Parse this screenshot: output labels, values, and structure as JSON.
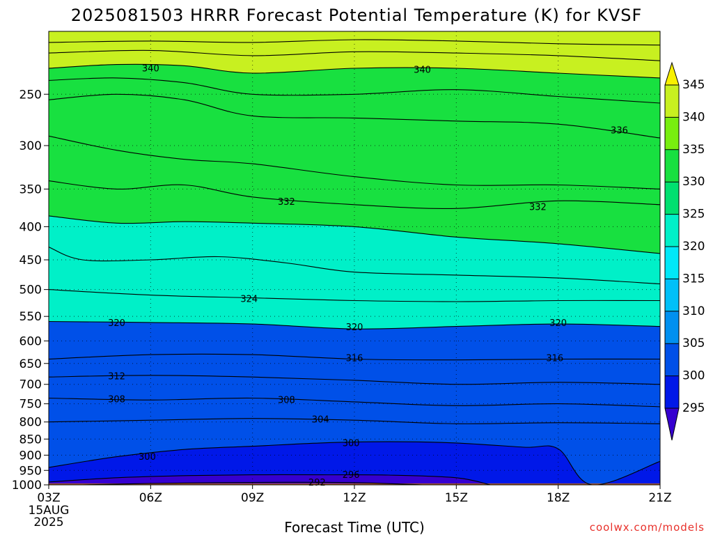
{
  "chart_data": {
    "type": "heatmap",
    "title": "2025081503 HRRR Forecast Potential Temperature (K) for KVSF",
    "xlabel": "Forecast Time (UTC)",
    "x_date_lines": [
      "15AUG",
      "2025"
    ],
    "x_ticks": [
      "03Z",
      "06Z",
      "09Z",
      "12Z",
      "15Z",
      "18Z",
      "21Z"
    ],
    "x_hours": [
      3,
      6,
      9,
      12,
      15,
      18,
      21
    ],
    "y_ticks": [
      250,
      300,
      350,
      400,
      450,
      500,
      550,
      600,
      650,
      700,
      750,
      800,
      850,
      900,
      950,
      1000
    ],
    "y_range_hpa": [
      1000,
      200
    ],
    "y_scale": "log-pressure",
    "grid": "dotted",
    "colorbar": {
      "levels": [
        295,
        300,
        305,
        310,
        315,
        320,
        325,
        330,
        335,
        340,
        345
      ],
      "labels": [
        "295",
        "300",
        "305",
        "310",
        "315",
        "320",
        "325",
        "330",
        "335",
        "340",
        "345"
      ],
      "colors": [
        "#3600d0",
        "#0018e8",
        "#0050e8",
        "#0090f0",
        "#00c0f8",
        "#00e8f8",
        "#00f0c8",
        "#00e070",
        "#18e040",
        "#78ee10",
        "#c8f020",
        "#f8f000"
      ],
      "extend": "both"
    },
    "contour_lines": [
      {
        "value": 292,
        "label": "292",
        "hours": [
          4,
          6,
          8,
          10,
          12,
          14
        ],
        "pressure": [
          1000,
          995,
          992,
          991,
          992,
          1000
        ]
      },
      {
        "value": 296,
        "label": "296",
        "hours": [
          3,
          5,
          7,
          9,
          11,
          13,
          15,
          16
        ],
        "pressure": [
          990,
          975,
          968,
          965,
          965,
          966,
          975,
          1000
        ]
      },
      {
        "value": 300,
        "label": "300",
        "hours": [
          3,
          5,
          7,
          9,
          11,
          13,
          15,
          17,
          18,
          19,
          21
        ],
        "pressure": [
          940,
          905,
          882,
          872,
          862,
          858,
          862,
          875,
          880,
          1000,
          920
        ]
      },
      {
        "value": 304,
        "label": "304",
        "hours": [
          3,
          6,
          9,
          12,
          15,
          18,
          21
        ],
        "pressure": [
          800,
          795,
          790,
          795,
          805,
          802,
          805
        ]
      },
      {
        "value": 308,
        "label": "308",
        "hours": [
          3,
          6,
          9,
          12,
          15,
          18,
          21
        ],
        "pressure": [
          735,
          740,
          735,
          745,
          755,
          750,
          758
        ]
      },
      {
        "value": 312,
        "label": "312",
        "hours": [
          3,
          6,
          9,
          12,
          15,
          18,
          21
        ],
        "pressure": [
          682,
          678,
          682,
          690,
          700,
          695,
          700
        ]
      },
      {
        "value": 316,
        "label": "316",
        "hours": [
          3,
          6,
          9,
          12,
          15,
          18,
          21
        ],
        "pressure": [
          640,
          630,
          630,
          640,
          642,
          640,
          640
        ]
      },
      {
        "value": 320,
        "label": "320",
        "hours": [
          3,
          6,
          9,
          12,
          15,
          18,
          21
        ],
        "pressure": [
          560,
          562,
          565,
          575,
          570,
          565,
          570
        ]
      },
      {
        "value": 324,
        "label": "324",
        "hours": [
          3,
          6,
          9,
          12,
          15,
          18,
          21
        ],
        "pressure": [
          500,
          510,
          515,
          520,
          522,
          520,
          520
        ]
      },
      {
        "value": 328,
        "label": "",
        "hours": [
          3,
          4,
          6,
          8,
          10,
          12,
          15,
          18,
          21
        ],
        "pressure": [
          430,
          450,
          450,
          445,
          455,
          470,
          475,
          480,
          490
        ]
      },
      {
        "value": 330,
        "label": "",
        "hours": [
          3,
          5,
          7,
          9,
          12,
          15,
          18,
          21
        ],
        "pressure": [
          385,
          395,
          393,
          395,
          400,
          415,
          425,
          440
        ]
      },
      {
        "value": 332,
        "label": "332",
        "hours": [
          3,
          5,
          7,
          9,
          12,
          15,
          18,
          21
        ],
        "pressure": [
          340,
          350,
          345,
          360,
          370,
          375,
          365,
          370
        ]
      },
      {
        "value": 334,
        "label": "",
        "hours": [
          3,
          5,
          7,
          9,
          12,
          15,
          18,
          21
        ],
        "pressure": [
          290,
          305,
          315,
          320,
          335,
          345,
          345,
          350
        ]
      },
      {
        "value": 336,
        "label": "336",
        "hours": [
          3,
          5,
          7,
          9,
          12,
          15,
          18,
          21
        ],
        "pressure": [
          255,
          250,
          255,
          270,
          272,
          275,
          278,
          292
        ]
      },
      {
        "value": 338,
        "label": "",
        "hours": [
          3,
          5,
          7,
          9,
          12,
          15,
          18,
          21
        ],
        "pressure": [
          238,
          236,
          240,
          250,
          250,
          246,
          252,
          258
        ]
      },
      {
        "value": 340,
        "label": "340",
        "hours": [
          3,
          5,
          7,
          9,
          12,
          15,
          18,
          21
        ],
        "pressure": [
          228,
          225,
          226,
          232,
          228,
          228,
          232,
          236
        ]
      },
      {
        "value": 342,
        "label": "",
        "hours": [
          3,
          6,
          9,
          12,
          15,
          18,
          21
        ],
        "pressure": [
          216,
          214,
          218,
          215,
          216,
          218,
          222
        ]
      },
      {
        "value": 344,
        "label": "",
        "hours": [
          3,
          6,
          9,
          12,
          15,
          18,
          21
        ],
        "pressure": [
          208,
          207,
          208,
          206,
          207,
          209,
          210
        ]
      }
    ],
    "labeled_contours": [
      {
        "label": "340",
        "hour": 6,
        "pressure": 228
      },
      {
        "label": "340",
        "hour": 14,
        "pressure": 229
      },
      {
        "label": "336",
        "hour": 19.8,
        "pressure": 284
      },
      {
        "label": "332",
        "hour": 10,
        "pressure": 366
      },
      {
        "label": "332",
        "hour": 17.4,
        "pressure": 373
      },
      {
        "label": "324",
        "hour": 8.9,
        "pressure": 517
      },
      {
        "label": "320",
        "hour": 5,
        "pressure": 563
      },
      {
        "label": "320",
        "hour": 12,
        "pressure": 571
      },
      {
        "label": "320",
        "hour": 18,
        "pressure": 563
      },
      {
        "label": "316",
        "hour": 12,
        "pressure": 638
      },
      {
        "label": "316",
        "hour": 17.9,
        "pressure": 638
      },
      {
        "label": "312",
        "hour": 5,
        "pressure": 680
      },
      {
        "label": "308",
        "hour": 5,
        "pressure": 738
      },
      {
        "label": "308",
        "hour": 10,
        "pressure": 740
      },
      {
        "label": "304",
        "hour": 11,
        "pressure": 793
      },
      {
        "label": "300",
        "hour": 11.9,
        "pressure": 862
      },
      {
        "label": "300",
        "hour": 5.9,
        "pressure": 905
      },
      {
        "label": "296",
        "hour": 11.9,
        "pressure": 965
      },
      {
        "label": "292",
        "hour": 10.9,
        "pressure": 991
      }
    ],
    "below_ground_color": "#a65530"
  },
  "credit": "coolwx.com/models"
}
